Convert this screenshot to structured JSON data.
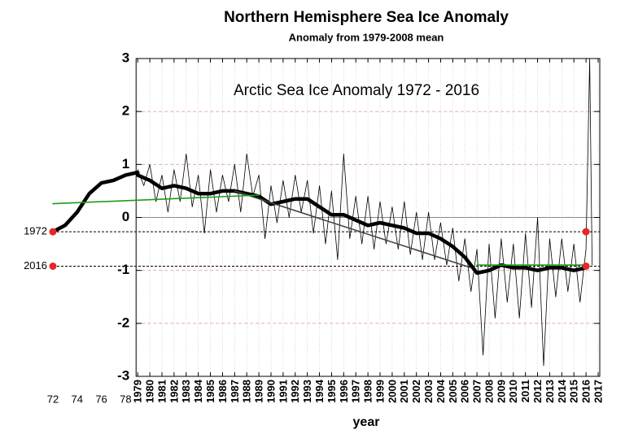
{
  "chart_data": {
    "type": "line",
    "title": "Northern Hemisphere Sea Ice Anomaly",
    "subtitle": "Anomaly from 1979-2008 mean",
    "annotation": "Arctic Sea Ice Anomaly 1972 - 2016",
    "x_label": "year",
    "xlim": [
      1972,
      2017
    ],
    "ylim": [
      -3,
      3
    ],
    "yticks": [
      -3,
      -2,
      -1,
      0,
      1,
      2,
      3
    ],
    "xticks": [
      1979,
      1980,
      1981,
      1982,
      1983,
      1984,
      1985,
      1986,
      1987,
      1988,
      1989,
      1990,
      1991,
      1992,
      1993,
      1994,
      1995,
      1996,
      1997,
      1998,
      1999,
      2000,
      2001,
      2002,
      2003,
      2004,
      2005,
      2006,
      2007,
      2008,
      2009,
      2010,
      2011,
      2012,
      2013,
      2014,
      2015,
      2016,
      2017
    ],
    "xticks_ext": [
      {
        "value": 1972,
        "label": "72"
      },
      {
        "value": 1974,
        "label": "74"
      },
      {
        "value": 1976,
        "label": "76"
      },
      {
        "value": 1978,
        "label": "78"
      }
    ],
    "grid": true,
    "series": [
      {
        "color": "#000000",
        "line_width": 0.8,
        "x": [
          1979.0,
          1979.5,
          1980.0,
          1980.5,
          1981.0,
          1981.5,
          1982.0,
          1982.5,
          1983.0,
          1983.5,
          1984.0,
          1984.5,
          1985.0,
          1985.5,
          1986.0,
          1986.5,
          1987.0,
          1987.5,
          1988.0,
          1988.5,
          1989.0,
          1989.5,
          1990.0,
          1990.5,
          1991.0,
          1991.5,
          1992.0,
          1992.5,
          1993.0,
          1993.5,
          1994.0,
          1994.5,
          1995.0,
          1995.5,
          1996.0,
          1996.5,
          1997.0,
          1997.5,
          1998.0,
          1998.5,
          1999.0,
          1999.5,
          2000.0,
          2000.5,
          2001.0,
          2001.5,
          2002.0,
          2002.5,
          2003.0,
          2003.5,
          2004.0,
          2004.5,
          2005.0,
          2005.5,
          2006.0,
          2006.5,
          2007.0,
          2007.5,
          2008.0,
          2008.5,
          2009.0,
          2009.5,
          2010.0,
          2010.5,
          2011.0,
          2011.5,
          2012.0,
          2012.5,
          2013.0,
          2013.5,
          2014.0,
          2014.5,
          2015.0,
          2015.5,
          2016.0,
          2016.3,
          2016.5
        ],
        "values": [
          0.9,
          0.6,
          1.0,
          0.3,
          0.8,
          0.1,
          0.9,
          0.3,
          1.2,
          0.2,
          0.8,
          -0.3,
          0.9,
          0.1,
          0.8,
          0.3,
          1.0,
          0.1,
          1.2,
          0.4,
          0.8,
          -0.4,
          0.6,
          -0.1,
          0.7,
          0.0,
          0.8,
          0.1,
          0.7,
          -0.3,
          0.6,
          -0.5,
          0.5,
          -0.8,
          1.2,
          -0.4,
          0.4,
          -0.5,
          0.4,
          -0.6,
          0.3,
          -0.5,
          0.2,
          -0.6,
          0.3,
          -0.7,
          0.1,
          -0.8,
          0.1,
          -0.8,
          -0.1,
          -0.9,
          -0.2,
          -1.2,
          -0.4,
          -1.4,
          -0.6,
          -2.6,
          -0.5,
          -1.9,
          -0.4,
          -1.6,
          -0.5,
          -1.9,
          -0.3,
          -1.7,
          0.0,
          -2.8,
          -0.4,
          -1.5,
          -0.4,
          -1.4,
          -0.5,
          -1.6,
          -0.6,
          3.0,
          -0.9
        ]
      },
      {
        "color": "#000000",
        "line_width": 4.5,
        "x": [
          1979,
          1980,
          1981,
          1982,
          1983,
          1984,
          1985,
          1986,
          1987,
          1988,
          1989,
          1990,
          1991,
          1992,
          1993,
          1994,
          1995,
          1996,
          1997,
          1998,
          1999,
          2000,
          2001,
          2002,
          2003,
          2004,
          2005,
          2006,
          2007,
          2008,
          2009,
          2010,
          2011,
          2012,
          2013,
          2014,
          2015,
          2016
        ],
        "values": [
          0.8,
          0.7,
          0.55,
          0.6,
          0.55,
          0.45,
          0.45,
          0.5,
          0.5,
          0.45,
          0.4,
          0.25,
          0.3,
          0.35,
          0.35,
          0.2,
          0.05,
          0.05,
          -0.05,
          -0.15,
          -0.1,
          -0.15,
          -0.2,
          -0.3,
          -0.3,
          -0.4,
          -0.55,
          -0.75,
          -1.05,
          -1.0,
          -0.9,
          -0.95,
          -0.95,
          -1.0,
          -0.95,
          -0.95,
          -1.0,
          -0.95
        ]
      },
      {
        "color": "#000000",
        "line_width": 4.5,
        "x": [
          1972,
          1973,
          1974,
          1975,
          1976,
          1977,
          1978,
          1979
        ],
        "values": [
          -0.27,
          -0.15,
          0.1,
          0.45,
          0.65,
          0.7,
          0.8,
          0.85
        ]
      }
    ],
    "trend_lines": [
      {
        "color": "#444444",
        "x": [
          1987,
          2006.5
        ],
        "values": [
          0.5,
          -0.95
        ]
      },
      {
        "color": "#1a9e1a",
        "x": [
          1972,
          1989
        ],
        "values": [
          0.26,
          0.42
        ]
      },
      {
        "color": "#1a9e1a",
        "x": [
          2007,
          2016
        ],
        "values": [
          -0.9,
          -0.9
        ]
      }
    ],
    "hlines": [
      {
        "value": -0.27,
        "label": "1972"
      },
      {
        "value": -0.92,
        "label": "2016"
      }
    ],
    "markers": {
      "color": "#e8262b",
      "x": [
        1972,
        1972,
        2016,
        2016
      ],
      "values": [
        -0.27,
        -0.92,
        -0.27,
        -0.92
      ]
    }
  }
}
